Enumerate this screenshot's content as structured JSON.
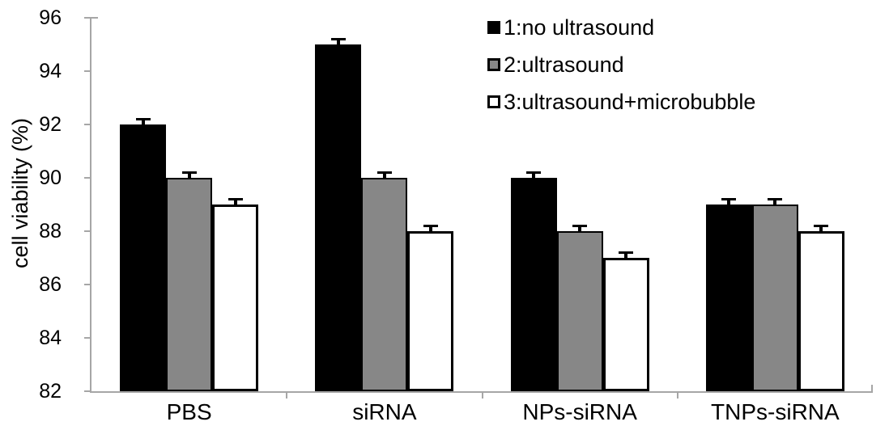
{
  "figure": {
    "background": "#ffffff",
    "axis_color": "#a6a6a6",
    "text_color": "#000000"
  },
  "chart_data": {
    "type": "bar",
    "title": "",
    "xlabel": "",
    "ylabel": "cell viability (%)",
    "ylim": [
      82,
      96
    ],
    "ytick_step": 2,
    "yticks": [
      96,
      94,
      92,
      90,
      88,
      86,
      84,
      82
    ],
    "categories": [
      "PBS",
      "siRNA",
      "NPs-siRNA",
      "TNPs-siRNA"
    ],
    "series": [
      {
        "name": "1:no ultrasound",
        "fill": "#000000",
        "border": "#000000",
        "values": [
          92,
          95,
          90,
          89
        ],
        "error": 0.15
      },
      {
        "name": "2:ultrasound",
        "fill": "#878787",
        "border": "#000000",
        "values": [
          90,
          90,
          88,
          89
        ],
        "error": 0.15
      },
      {
        "name": "3:ultrasound+microbubble",
        "fill": "#ffffff",
        "border": "#000000",
        "values": [
          89,
          88,
          87,
          88
        ],
        "error": 0.15
      }
    ],
    "legend_position": "top-right",
    "grid": false,
    "error_bars": true
  }
}
